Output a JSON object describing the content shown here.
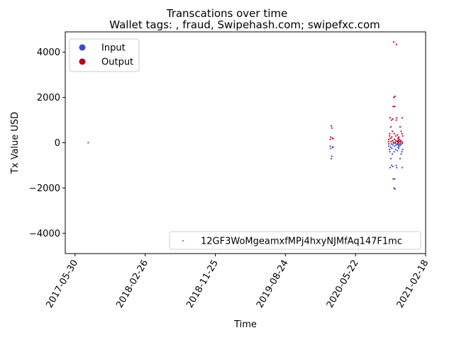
{
  "chart_data": {
    "type": "scatter",
    "title": "Transcations over time",
    "subtitle": "Wallet tags: , fraud, Swipehash.com; swipefxc.com",
    "xlabel": "Time",
    "ylabel": "Tx Value USD",
    "xlim": [
      "2017-04-22",
      "2021-02-18"
    ],
    "ylim": [
      -4900,
      4900
    ],
    "x_ticks": [
      "2017-05-30",
      "2018-02-26",
      "2018-11-25",
      "2019-08-24",
      "2020-05-22",
      "2021-02-18"
    ],
    "y_ticks": [
      -4000,
      -2000,
      0,
      2000,
      4000
    ],
    "grid": false,
    "legends": [
      {
        "placement": "upper-left",
        "entries": [
          {
            "label": "Input",
            "color": "#3b4cc0"
          },
          {
            "label": "Output",
            "color": "#b40426"
          }
        ]
      },
      {
        "placement": "lower-right",
        "entries": [
          {
            "label": "12GF3WoMgeamxfMPj4hxyNJMfAq147F1mc",
            "color": "#2a9d8f"
          }
        ]
      }
    ],
    "series": [
      {
        "name": "Input",
        "color": "#3b4cc0",
        "points": [
          {
            "x": "2017-07-20",
            "y": 5
          },
          {
            "x": "2020-02-14",
            "y": -150
          },
          {
            "x": "2020-02-16",
            "y": -250
          },
          {
            "x": "2020-02-18",
            "y": -700
          },
          {
            "x": "2020-02-20",
            "y": -600
          },
          {
            "x": "2020-02-23",
            "y": -200
          },
          {
            "x": "2020-02-25",
            "y": -180
          },
          {
            "x": "2020-09-28",
            "y": -50
          },
          {
            "x": "2020-09-28",
            "y": -150
          },
          {
            "x": "2020-10-01",
            "y": -300
          },
          {
            "x": "2020-10-02",
            "y": -400
          },
          {
            "x": "2020-10-03",
            "y": -1100
          },
          {
            "x": "2020-10-05",
            "y": -200
          },
          {
            "x": "2020-10-06",
            "y": -700
          },
          {
            "x": "2020-10-07",
            "y": -50
          },
          {
            "x": "2020-10-09",
            "y": -1000
          },
          {
            "x": "2020-10-10",
            "y": -250
          },
          {
            "x": "2020-10-12",
            "y": -500
          },
          {
            "x": "2020-10-13",
            "y": -100
          },
          {
            "x": "2020-10-14",
            "y": -1050
          },
          {
            "x": "2020-10-15",
            "y": -1600
          },
          {
            "x": "2020-10-16",
            "y": -30
          },
          {
            "x": "2020-10-18",
            "y": -2000
          },
          {
            "x": "2020-10-19",
            "y": -400
          },
          {
            "x": "2020-10-20",
            "y": -150
          },
          {
            "x": "2020-10-21",
            "y": -1600
          },
          {
            "x": "2020-10-22",
            "y": -2050
          },
          {
            "x": "2020-10-23",
            "y": -20
          },
          {
            "x": "2020-10-25",
            "y": -300
          },
          {
            "x": "2020-10-26",
            "y": -100
          },
          {
            "x": "2020-10-27",
            "y": -1000
          },
          {
            "x": "2020-10-29",
            "y": -1100
          },
          {
            "x": "2020-10-30",
            "y": -50
          },
          {
            "x": "2020-11-01",
            "y": -350
          },
          {
            "x": "2020-11-02",
            "y": -80
          },
          {
            "x": "2020-11-03",
            "y": -200
          },
          {
            "x": "2020-11-04",
            "y": -20
          },
          {
            "x": "2020-11-05",
            "y": -120
          },
          {
            "x": "2020-11-06",
            "y": -250
          },
          {
            "x": "2020-11-08",
            "y": -60
          },
          {
            "x": "2020-11-09",
            "y": -150
          },
          {
            "x": "2020-11-11",
            "y": -700
          },
          {
            "x": "2020-11-13",
            "y": -40
          },
          {
            "x": "2020-11-14",
            "y": -90
          },
          {
            "x": "2020-11-15",
            "y": -500
          },
          {
            "x": "2020-11-18",
            "y": -400
          },
          {
            "x": "2020-11-19",
            "y": -1100
          },
          {
            "x": "2020-11-20",
            "y": -30
          },
          {
            "x": "2020-11-21",
            "y": -300
          }
        ]
      },
      {
        "name": "Output",
        "color": "#b40426",
        "points": [
          {
            "x": "2020-02-14",
            "y": 150
          },
          {
            "x": "2020-02-16",
            "y": 250
          },
          {
            "x": "2020-02-18",
            "y": 750
          },
          {
            "x": "2020-02-20",
            "y": 650
          },
          {
            "x": "2020-02-23",
            "y": 200
          },
          {
            "x": "2020-02-25",
            "y": 180
          },
          {
            "x": "2020-09-28",
            "y": 50
          },
          {
            "x": "2020-09-28",
            "y": 150
          },
          {
            "x": "2020-10-01",
            "y": 300
          },
          {
            "x": "2020-10-02",
            "y": 400
          },
          {
            "x": "2020-10-03",
            "y": 1100
          },
          {
            "x": "2020-10-05",
            "y": 200
          },
          {
            "x": "2020-10-06",
            "y": 700
          },
          {
            "x": "2020-10-07",
            "y": 50
          },
          {
            "x": "2020-10-09",
            "y": 1000
          },
          {
            "x": "2020-10-10",
            "y": 250
          },
          {
            "x": "2020-10-12",
            "y": 500
          },
          {
            "x": "2020-10-13",
            "y": 100
          },
          {
            "x": "2020-10-14",
            "y": 1050
          },
          {
            "x": "2020-10-15",
            "y": 1600
          },
          {
            "x": "2020-10-16",
            "y": 30
          },
          {
            "x": "2020-10-17",
            "y": 4450
          },
          {
            "x": "2020-10-18",
            "y": 2000
          },
          {
            "x": "2020-10-19",
            "y": 400
          },
          {
            "x": "2020-10-20",
            "y": 150
          },
          {
            "x": "2020-10-21",
            "y": 1600
          },
          {
            "x": "2020-10-22",
            "y": 2050
          },
          {
            "x": "2020-10-23",
            "y": 20
          },
          {
            "x": "2020-10-25",
            "y": 300
          },
          {
            "x": "2020-10-26",
            "y": 100
          },
          {
            "x": "2020-10-27",
            "y": 1000
          },
          {
            "x": "2020-10-28",
            "y": 4350
          },
          {
            "x": "2020-10-29",
            "y": 1100
          },
          {
            "x": "2020-10-30",
            "y": 50
          },
          {
            "x": "2020-11-01",
            "y": 350
          },
          {
            "x": "2020-11-02",
            "y": 80
          },
          {
            "x": "2020-11-03",
            "y": 200
          },
          {
            "x": "2020-11-04",
            "y": 20
          },
          {
            "x": "2020-11-05",
            "y": 120
          },
          {
            "x": "2020-11-06",
            "y": 250
          },
          {
            "x": "2020-11-08",
            "y": 60
          },
          {
            "x": "2020-11-09",
            "y": 150
          },
          {
            "x": "2020-11-11",
            "y": 700
          },
          {
            "x": "2020-11-13",
            "y": 40
          },
          {
            "x": "2020-11-14",
            "y": 90
          },
          {
            "x": "2020-11-15",
            "y": 500
          },
          {
            "x": "2020-11-18",
            "y": 400
          },
          {
            "x": "2020-11-19",
            "y": 1100
          },
          {
            "x": "2020-11-20",
            "y": 30
          },
          {
            "x": "2020-11-21",
            "y": 300
          }
        ]
      }
    ]
  }
}
